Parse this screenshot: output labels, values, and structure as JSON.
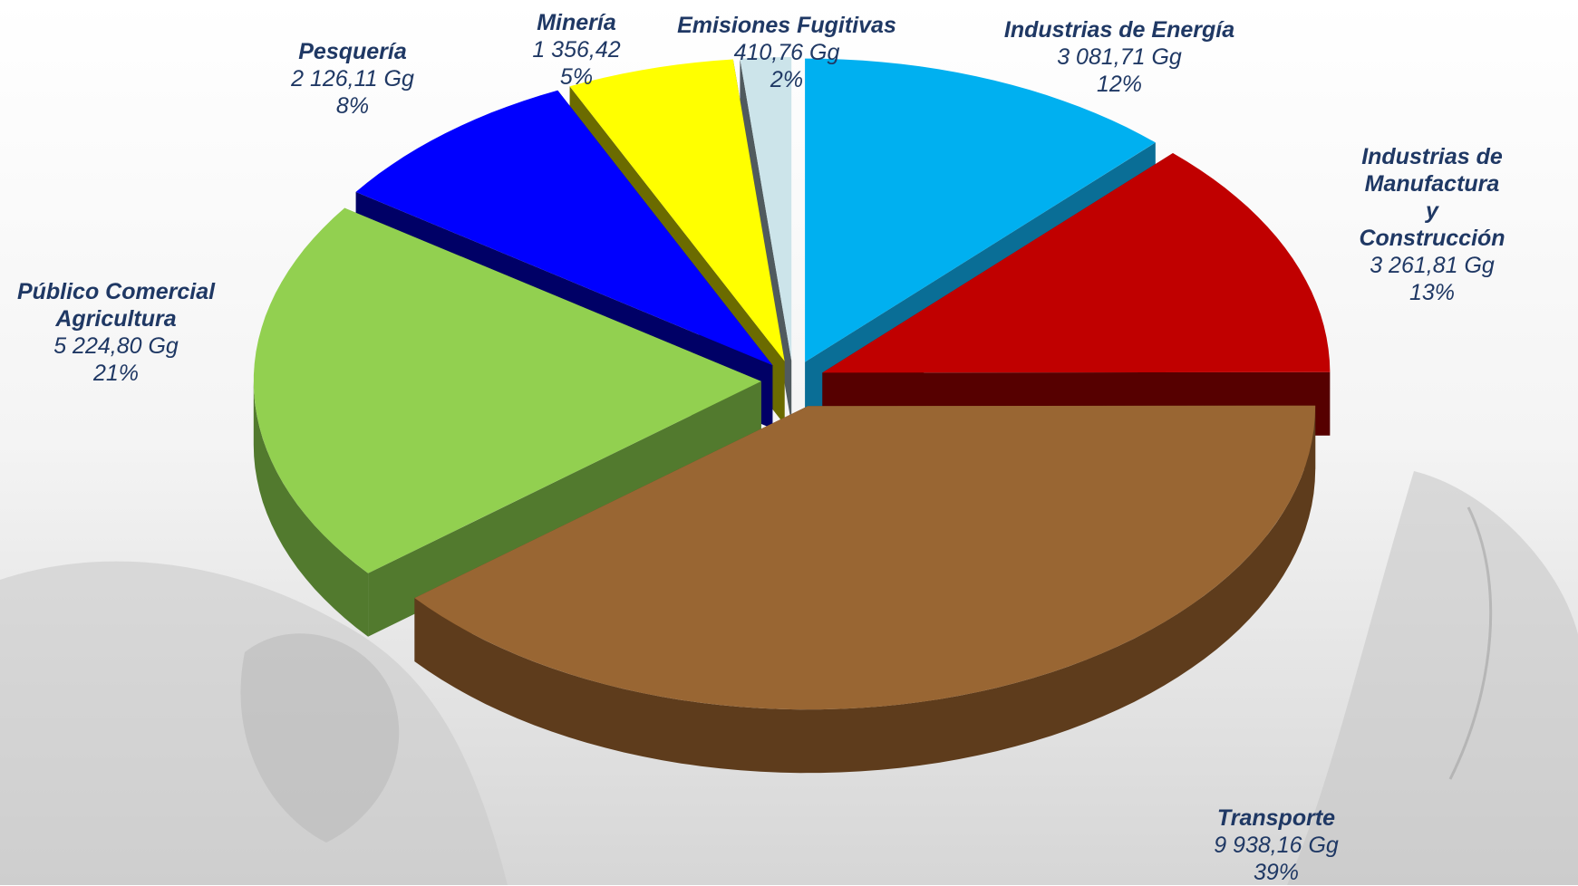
{
  "chart_data": {
    "type": "pie",
    "style": "3d-exploded",
    "unit": "Gg",
    "slices": [
      {
        "label": "Industrias de Energía",
        "value": 3081.71,
        "value_text": "3 081,71 Gg",
        "percent_text": "12%",
        "color": "#00b0f0",
        "side_color": "#0a6e96"
      },
      {
        "label": "Industrias de Manufactura\ny Construcción",
        "value": 3261.81,
        "value_text": "3 261,81 Gg",
        "percent_text": "13%",
        "color": "#c00000",
        "side_color": "#560000"
      },
      {
        "label": "Transporte",
        "value": 9938.16,
        "value_text": "9 938,16 Gg",
        "percent_text": "39%",
        "color": "#996633",
        "side_color": "#5e3c1c"
      },
      {
        "label": "Público Comercial\nAgricultura",
        "value": 5224.8,
        "value_text": "5 224,80 Gg",
        "percent_text": "21%",
        "color": "#92d050",
        "side_color": "#527a2e"
      },
      {
        "label": "Pesquería",
        "value": 2126.11,
        "value_text": "2 126,11 Gg",
        "percent_text": "8%",
        "color": "#0000ff",
        "side_color": "#000066"
      },
      {
        "label": "Minería",
        "value": 1356.42,
        "value_text": "1 356,42",
        "percent_text": "5%",
        "color": "#ffff00",
        "side_color": "#6b6b00"
      },
      {
        "label": "Emisiones Fugitivas",
        "value": 410.76,
        "value_text": "410,76 Gg",
        "percent_text": "2%",
        "color": "#cce4ea",
        "side_color": "#505a5e"
      }
    ]
  }
}
